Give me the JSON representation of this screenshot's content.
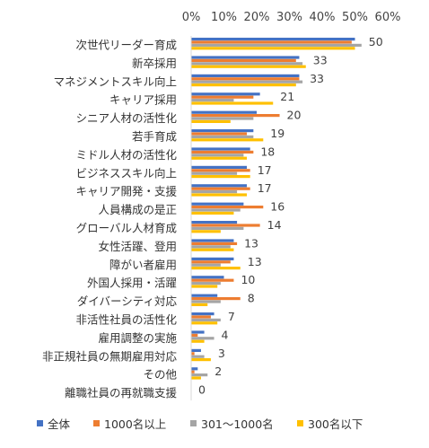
{
  "chart_data": {
    "type": "bar",
    "orientation": "horizontal",
    "xlim": [
      0,
      60
    ],
    "x_ticks": [
      "0%",
      "10%",
      "20%",
      "30%",
      "40%",
      "50%",
      "60%"
    ],
    "legend_placement": "bottom",
    "grid": false,
    "categories": [
      "次世代リーダー育成",
      "新卒採用",
      "マネジメントスキル向上",
      "キャリア採用",
      "シニア人材の活性化",
      "若手育成",
      "ミドル人材の活性化",
      "ビジネススキル向上",
      "キャリア開発・支援",
      "人員構成の是正",
      "グローバル人材育成",
      "女性活躍、登用",
      "障がい者雇用",
      "外国人採用・活躍",
      "ダイバーシティ対応",
      "非活性社員の活性化",
      "雇用調整の実施",
      "非正規社員の無期雇用対応",
      "その他",
      "離職社員の再就職支援"
    ],
    "data_labels": [
      "50",
      "33",
      "33",
      "21",
      "20",
      "19",
      "18",
      "17",
      "17",
      "16",
      "14",
      "13",
      "13",
      "10",
      "8",
      "7",
      "4",
      "3",
      "2",
      "0"
    ],
    "series": [
      {
        "name": "全体",
        "color": "#4472C4",
        "values": [
          50,
          33,
          33,
          21,
          20,
          19,
          18,
          17,
          17,
          16,
          14,
          13,
          13,
          10,
          8,
          7,
          4,
          3,
          2,
          0
        ]
      },
      {
        "name": "1000名以上",
        "color": "#ED7D31",
        "values": [
          49,
          32,
          33,
          19,
          27,
          17,
          19,
          18,
          18,
          22,
          21,
          14,
          12,
          13,
          15,
          6,
          2,
          1,
          1,
          0
        ]
      },
      {
        "name": "301～1000名",
        "color": "#A5A5A5",
        "values": [
          52,
          34,
          34,
          13,
          19,
          19,
          16,
          14,
          14,
          15,
          16,
          12,
          9,
          9,
          9,
          9,
          7,
          4,
          5,
          0
        ]
      },
      {
        "name": "300名以下",
        "color": "#FFC000",
        "values": [
          50,
          35,
          32,
          25,
          12,
          22,
          17,
          18,
          17,
          13,
          9,
          13,
          15,
          8,
          5,
          8,
          4,
          6,
          3,
          0
        ]
      }
    ]
  }
}
